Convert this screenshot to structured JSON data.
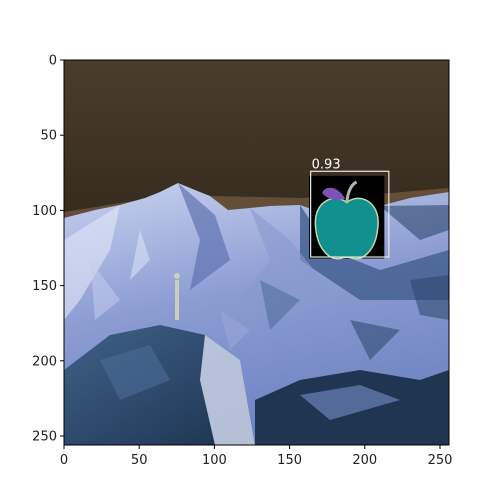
{
  "figure": {
    "kind": "image with detection overlay (matplotlib axes)",
    "x_axis": {
      "min": 0,
      "max": 256,
      "ticks": [
        0,
        50,
        100,
        150,
        200,
        250
      ],
      "labels": [
        "0",
        "50",
        "100",
        "150",
        "200",
        "250"
      ]
    },
    "y_axis": {
      "min": 0,
      "max": 256,
      "ticks": [
        0,
        50,
        100,
        150,
        200,
        250
      ],
      "labels": [
        "0",
        "50",
        "100",
        "150",
        "200",
        "250"
      ],
      "inverted": true
    }
  },
  "scene": {
    "description_colors": {
      "sky": "#3a2f22",
      "mountain_light": "#b9c3e8",
      "mountain_mid": "#7d8fc8",
      "mountain_dark": "#2e4a6e",
      "rock_shadow": "#1f3552",
      "horizon_glow": "#8a6a4a"
    }
  },
  "detection": {
    "score_label": "0.93",
    "box_data": {
      "x0": 164,
      "y0": 74,
      "x1": 216,
      "y1": 131
    },
    "crop_data": {
      "x0": 163,
      "y0": 77,
      "x1": 213,
      "y1": 132
    },
    "box_color": "#e8e8e8",
    "icon": "apple-icon",
    "apple_color": "#119090",
    "leaf_color": "#7d52b8"
  }
}
